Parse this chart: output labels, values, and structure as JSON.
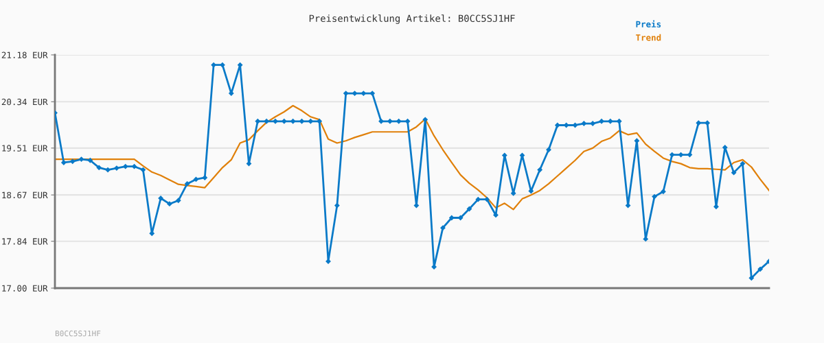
{
  "chart_data": {
    "type": "line",
    "title": "Preisentwicklung Artikel: B0CC5SJ1HF",
    "categories": [
      null,
      null,
      null,
      null,
      null,
      null,
      null,
      null,
      null,
      null,
      null,
      null,
      null,
      null,
      null,
      null,
      null,
      null,
      null,
      null,
      null,
      null,
      null,
      null,
      null,
      null,
      null,
      null,
      null,
      null,
      null,
      null,
      null,
      null,
      null,
      null,
      null,
      null,
      null,
      null,
      null,
      null,
      null,
      null,
      null,
      null,
      null,
      null,
      null,
      null,
      null,
      null,
      null,
      null,
      null,
      null,
      null,
      null,
      null,
      null,
      null,
      null,
      null,
      null,
      null,
      null,
      null,
      null,
      null,
      null,
      null,
      null,
      null,
      null,
      null,
      null,
      null,
      null,
      null,
      null,
      null,
      null
    ],
    "series": [
      {
        "name": "Preis",
        "color": "#0a7ac8",
        "marker": "diamond",
        "values": [
          20.14,
          19.25,
          19.27,
          19.31,
          19.29,
          19.16,
          19.12,
          19.15,
          19.18,
          19.18,
          19.12,
          17.98,
          18.61,
          18.51,
          18.57,
          18.87,
          18.95,
          18.98,
          21.0,
          21.0,
          20.49,
          21.0,
          19.23,
          19.99,
          19.99,
          19.99,
          19.99,
          19.99,
          19.99,
          19.99,
          19.99,
          17.48,
          18.48,
          20.49,
          20.49,
          20.49,
          20.49,
          19.99,
          19.99,
          19.99,
          19.99,
          18.48,
          20.02,
          17.38,
          18.08,
          18.26,
          18.26,
          18.42,
          18.59,
          18.59,
          18.31,
          19.38,
          18.7,
          19.38,
          18.74,
          19.12,
          19.48,
          19.92,
          19.92,
          19.92,
          19.95,
          19.95,
          19.99,
          19.99,
          19.99,
          18.48,
          19.64,
          17.88,
          18.64,
          18.73,
          19.39,
          19.39,
          19.39,
          19.96,
          19.96,
          18.46,
          19.52,
          19.07,
          19.23,
          17.18,
          17.34,
          17.48
        ]
      },
      {
        "name": "Trend",
        "color": "#e0800a",
        "marker": "none",
        "values": [
          19.31,
          19.31,
          19.31,
          19.31,
          19.31,
          19.31,
          19.31,
          19.31,
          19.31,
          19.31,
          19.19,
          19.08,
          19.02,
          18.94,
          18.86,
          18.84,
          18.82,
          18.8,
          18.98,
          19.16,
          19.3,
          19.6,
          19.66,
          19.82,
          19.97,
          20.07,
          20.16,
          20.27,
          20.18,
          20.07,
          20.02,
          19.67,
          19.6,
          19.64,
          19.7,
          19.75,
          19.8,
          19.8,
          19.8,
          19.8,
          19.8,
          19.89,
          20.03,
          19.73,
          19.48,
          19.25,
          19.03,
          18.88,
          18.76,
          18.62,
          18.44,
          18.52,
          18.41,
          18.6,
          18.67,
          18.75,
          18.87,
          19.01,
          19.15,
          19.29,
          19.45,
          19.51,
          19.63,
          19.69,
          19.82,
          19.75,
          19.78,
          19.58,
          19.45,
          19.33,
          19.27,
          19.23,
          19.16,
          19.14,
          19.14,
          19.13,
          19.12,
          19.25,
          19.3,
          19.17,
          18.95,
          18.75
        ]
      }
    ],
    "ylim": [
      17.0,
      21.18
    ],
    "yticks": [
      {
        "value": 17.0,
        "label": "17.00 EUR"
      },
      {
        "value": 17.84,
        "label": "17.84 EUR"
      },
      {
        "value": 18.67,
        "label": "18.67 EUR"
      },
      {
        "value": 19.51,
        "label": "19.51 EUR"
      },
      {
        "value": 20.34,
        "label": "20.34 EUR"
      },
      {
        "value": 21.18,
        "label": "21.18 EUR"
      }
    ],
    "grid": "y",
    "legend": "top right",
    "tick_labels": "y",
    "line_style": "solid",
    "annotations": [
      "B0CC5SJ1HF"
    ]
  }
}
